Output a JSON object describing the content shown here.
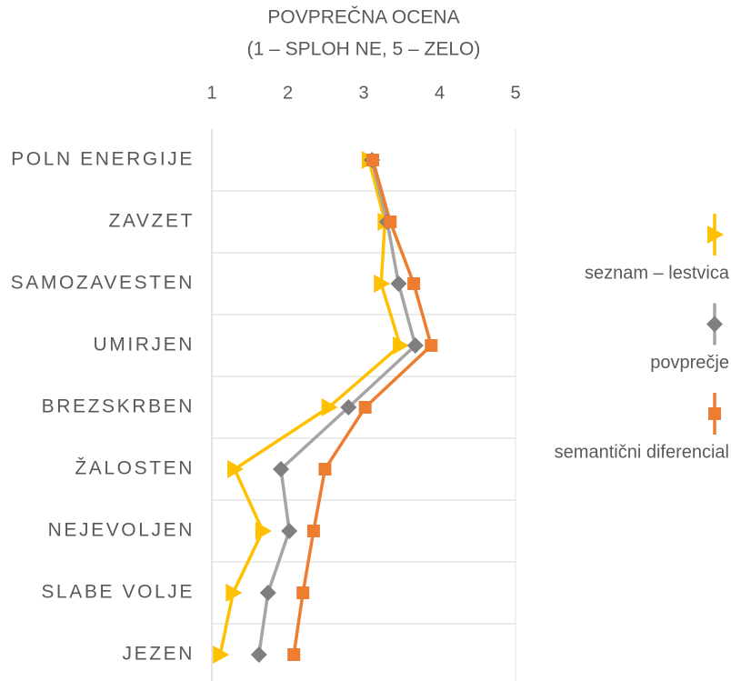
{
  "chart_data": {
    "type": "line",
    "orientation": "horizontal",
    "title": "POVPREČNA OCENA",
    "subtitle": "(1 – SPLOH NE, 5 – ZELO)",
    "categories": [
      "POLN ENERGIJE",
      "ZAVZET",
      "SAMOZAVESTEN",
      "UMIRJEN",
      "BREZSKRBEN",
      "ŽALOSTEN",
      "NEJEVOLJEN",
      "SLABE VOLJE",
      "JEZEN"
    ],
    "xlim": [
      1,
      5
    ],
    "xticks": [
      1,
      2,
      3,
      4,
      5
    ],
    "legend": "right",
    "series": [
      {
        "name": "seznam – lestvica",
        "color": "#ffc000",
        "marker_color": "#ffc000",
        "marker": "triangle-right",
        "values": [
          3.07,
          3.28,
          3.23,
          3.48,
          2.54,
          1.3,
          1.67,
          1.28,
          1.11
        ]
      },
      {
        "name": "povprečje",
        "color": "#a5a5a5",
        "marker_color": "#7f7f7f",
        "marker": "diamond",
        "values": [
          3.11,
          3.31,
          3.46,
          3.68,
          2.8,
          1.91,
          2.02,
          1.74,
          1.62
        ]
      },
      {
        "name": "semantični diferencial",
        "color": "#ed7d31",
        "marker_color": "#ed7d31",
        "marker": "square",
        "values": [
          3.12,
          3.35,
          3.66,
          3.89,
          3.02,
          2.49,
          2.34,
          2.2,
          2.08
        ]
      }
    ]
  }
}
